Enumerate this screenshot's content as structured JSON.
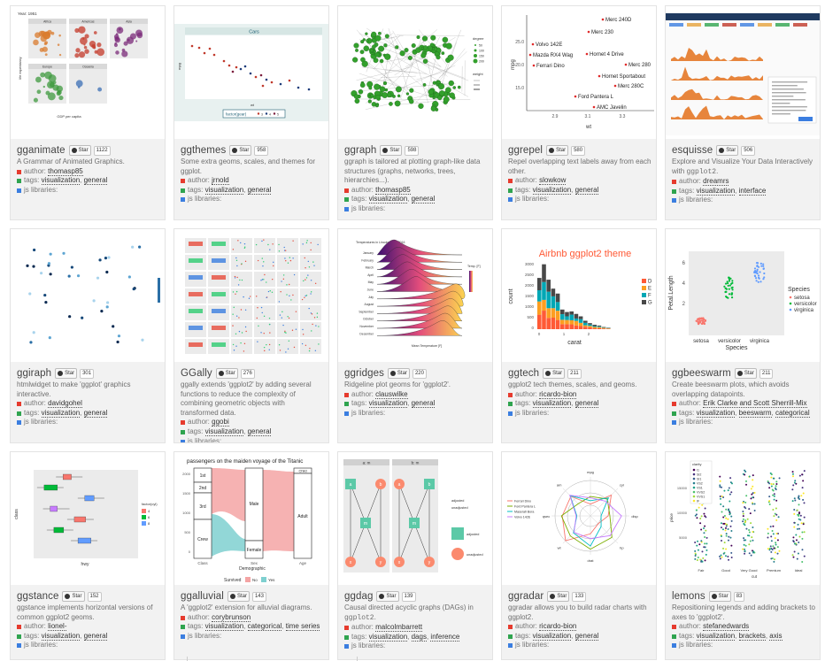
{
  "star_label": "Star",
  "labels": {
    "author": "author:",
    "tags": "tags:",
    "js": "js libraries:"
  },
  "cards": [
    {
      "name": "gganimate",
      "count": "1122",
      "desc": "A Grammar of Animated Graphics.",
      "author": "thomasp85",
      "tags": [
        "visualization",
        "general"
      ]
    },
    {
      "name": "ggthemes",
      "count": "958",
      "desc": "Some extra geoms, scales, and themes for ggplot.",
      "author": "jrnold",
      "tags": [
        "visualization",
        "general"
      ]
    },
    {
      "name": "ggraph",
      "count": "598",
      "desc": "ggraph is tailored at plotting graph-like data structures (graphs, networks, trees, hierarchies...).",
      "author": "thomasp85",
      "tags": [
        "visualization",
        "general"
      ]
    },
    {
      "name": "ggrepel",
      "count": "580",
      "desc": "Repel overlapping text labels away from each other.",
      "author": "slowkow",
      "tags": [
        "visualization",
        "general"
      ]
    },
    {
      "name": "esquisse",
      "count": "506",
      "desc_pre": "Explore and Visualize Your Data Interactively with ",
      "desc_code": "ggplot2",
      "author": "dreamrs",
      "tags": [
        "visualization",
        "interface"
      ]
    },
    {
      "name": "ggiraph",
      "count": "301",
      "desc": "htmlwidget to make 'ggplot' graphics interactive.",
      "author": "davidgohel",
      "tags": [
        "visualization",
        "general"
      ]
    },
    {
      "name": "GGally",
      "count": "276",
      "desc": "ggally extends 'ggplot2' by adding several functions to reduce the complexity of combining geometric objects with transformed data.",
      "author": "ggobi",
      "tags": [
        "visualization",
        "general"
      ]
    },
    {
      "name": "ggridges",
      "count": "220",
      "desc": "Ridgeline plot geoms for 'ggplot2'.",
      "author": "clauswilke",
      "tags": [
        "visualization",
        "general"
      ]
    },
    {
      "name": "ggtech",
      "count": "211",
      "desc": "ggplot2 tech themes, scales, and geoms.",
      "author": "ricardo-bion",
      "tags": [
        "visualization",
        "general"
      ]
    },
    {
      "name": "ggbeeswarm",
      "count": "211",
      "desc": "Create beeswarm plots, which avoids overlapping datapoints.",
      "author": "Erik Clarke and Scott Sherrill-Mix",
      "tags": [
        "visualization",
        "beeswarm",
        "categorical"
      ]
    },
    {
      "name": "ggstance",
      "count": "152",
      "desc": "ggstance implements horizontal versions of common ggplot2 geoms.",
      "author": "lionel-",
      "tags": [
        "visualization",
        "general"
      ]
    },
    {
      "name": "ggalluvial",
      "count": "143",
      "desc": "A 'ggplot2' extension for alluvial diagrams.",
      "author": "corybrunson",
      "tags": [
        "visualization",
        "categorical",
        "time series"
      ]
    },
    {
      "name": "ggdag",
      "count": "139",
      "desc_pre": "Causal directed acyclic graphs (DAGs) in ",
      "desc_code": "ggplot2",
      "author": "malcolmbarrett",
      "tags": [
        "visualization",
        "dags",
        "inference"
      ]
    },
    {
      "name": "ggradar",
      "count": "133",
      "desc": "ggradar allows you to build radar charts with ggplot2.",
      "author": "ricardo-bion",
      "tags": [
        "visualization",
        "general"
      ]
    },
    {
      "name": "lemons",
      "count": "83",
      "desc": "Repositioning legends and adding brackets to axes to 'ggplot2'.",
      "author": "stefanedwards",
      "tags": [
        "visualization",
        "brackets",
        "axis"
      ]
    }
  ],
  "thumbs": {
    "gganimate": {
      "title": "Year: 1951",
      "panels": [
        "Africa",
        "Americas",
        "Asia",
        "Europe",
        "Oceania"
      ],
      "xlabel": "GDP per capita",
      "ylabel": "life expectancy"
    },
    "ggthemes": {
      "title": "Cars",
      "legend_label": "factor(gear)",
      "legend_values": [
        "3",
        "4",
        "5"
      ],
      "xlabel": "wt",
      "ylabel": "mpg"
    },
    "ggraph": {
      "legend_degree": "degree",
      "degree_values": [
        "50",
        "100",
        "150",
        "200"
      ],
      "legend_weight": "weight"
    },
    "ggrepel": {
      "labels": [
        "Merc 240D",
        "Merc 230",
        "Volvo 142E",
        "Mazda RX4 Wag",
        "Ferrari Dino",
        "Hornet 4 Drive",
        "Merc 280",
        "Hornet Sportabout",
        "Merc 280C",
        "Ford Pantera L",
        "AMC Javelin"
      ],
      "yticks": [
        "25.0",
        "20.0",
        "15.0"
      ],
      "xticks": [
        "2.9",
        "3.1",
        "3.3"
      ],
      "xlabel": "wt",
      "ylabel": "mpg"
    },
    "ggridges": {
      "title": "Temperatures in Lincoln NE in 2016",
      "months": [
        "January",
        "February",
        "March",
        "April",
        "May",
        "June",
        "July",
        "August",
        "September",
        "October",
        "November",
        "December"
      ],
      "xlabel": "Mean Temperature [F]",
      "legend": "Temp. [F]"
    },
    "ggtech": {
      "title": "Airbnb ggplot2 theme",
      "ylabel": "count",
      "xlabel": "carat",
      "legend": [
        "D",
        "E",
        "F",
        "G"
      ],
      "yticks": [
        "3000",
        "2500",
        "2000",
        "1500",
        "1000",
        "500",
        "0"
      ],
      "xticks": [
        "0",
        "1",
        "2"
      ]
    },
    "ggbeeswarm": {
      "ylabel": "Petal.Length",
      "xlabel": "Species",
      "categories": [
        "setosa",
        "versicolor",
        "virginica"
      ],
      "legend_title": "Species",
      "yticks": [
        "6",
        "4",
        "2"
      ]
    },
    "ggstance": {
      "legend_title": "factor(cyl)",
      "legend_values": [
        "4",
        "6",
        "8"
      ],
      "xlabel": "hwy",
      "ylabel": "class"
    },
    "ggalluvial": {
      "title": "passengers on the maiden voyage of the Titanic",
      "left_strata": [
        "1st",
        "2nd",
        "3rd",
        "Crew"
      ],
      "mid_strata": [
        "Male",
        "Female"
      ],
      "right_strata": [
        "Child",
        "Adult"
      ],
      "axis_labels": [
        "Class",
        "Sex",
        "Age"
      ],
      "xlabel": "Demographic",
      "legend_title": "Survived",
      "legend_values": [
        "No",
        "Yes"
      ],
      "yticks": [
        "2000",
        "1500",
        "1000",
        "500",
        "0"
      ]
    },
    "ggdag": {
      "panels": [
        "a: m",
        "b: m"
      ],
      "nodes": [
        "a",
        "b",
        "m",
        "x",
        "y"
      ],
      "legend_top": [
        "adjusted",
        "unadjusted"
      ],
      "legend_bottom": [
        "adjusted",
        "unadjusted"
      ]
    },
    "ggradar": {
      "legend": [
        "Ferrari Dino",
        "Ford Pantera L",
        "Maserati Bora",
        "Volvo 142E"
      ],
      "axes": [
        "mpg",
        "cyl",
        "disp",
        "hp",
        "drat",
        "wt",
        "qsec",
        "am"
      ]
    },
    "lemons": {
      "legend_title": "clarity",
      "legend_values": [
        "I1",
        "SI2",
        "SI1",
        "VS2",
        "VS1",
        "VVS2",
        "VVS1",
        "IF"
      ],
      "xlabel": "cut",
      "ylabel": "price",
      "categories": [
        "Fair",
        "Good",
        "Very Good",
        "Premium",
        "Ideal"
      ],
      "yticks": [
        "15000",
        "10000",
        "5000"
      ]
    }
  }
}
